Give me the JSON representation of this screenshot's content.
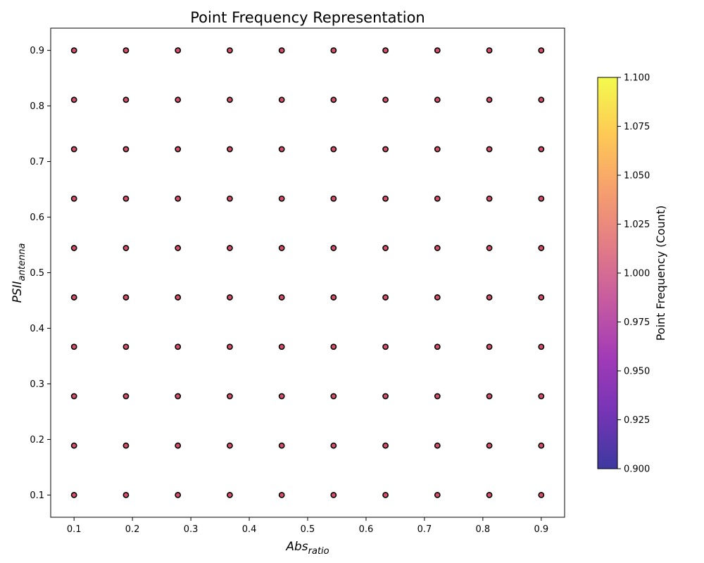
{
  "chart_data": {
    "type": "scatter",
    "title": "Point Frequency Representation",
    "xlabel": {
      "base": "Abs",
      "sub": "ratio"
    },
    "ylabel": {
      "base": "PSII",
      "sub": "antenna"
    },
    "x": [
      0.1,
      0.1889,
      0.2778,
      0.3667,
      0.4556,
      0.5444,
      0.6333,
      0.7222,
      0.8111,
      0.9
    ],
    "y": [
      0.1,
      0.1889,
      0.2778,
      0.3667,
      0.4556,
      0.5444,
      0.6333,
      0.7222,
      0.8111,
      0.9
    ],
    "point_value": 1.0,
    "xlim": [
      0.06,
      0.94
    ],
    "ylim": [
      0.06,
      0.94
    ],
    "xticks": [
      "0.1",
      "0.2",
      "0.3",
      "0.4",
      "0.5",
      "0.6",
      "0.7",
      "0.8",
      "0.9"
    ],
    "yticks": [
      "0.1",
      "0.2",
      "0.3",
      "0.4",
      "0.5",
      "0.6",
      "0.7",
      "0.8",
      "0.9"
    ],
    "colorbar": {
      "label": "Point Frequency (Count)",
      "range": [
        0.9,
        1.1
      ],
      "ticks": [
        "0.900",
        "0.925",
        "0.950",
        "0.975",
        "1.000",
        "1.025",
        "1.050",
        "1.075",
        "1.100"
      ],
      "colors": [
        "#0d0887",
        "#5302a3",
        "#8b0aa5",
        "#b83289",
        "#db5c68",
        "#f48849",
        "#febd2a",
        "#f0f921"
      ]
    },
    "marker_color": "#d6506a",
    "marker_edge": "#000000",
    "grid": false
  }
}
